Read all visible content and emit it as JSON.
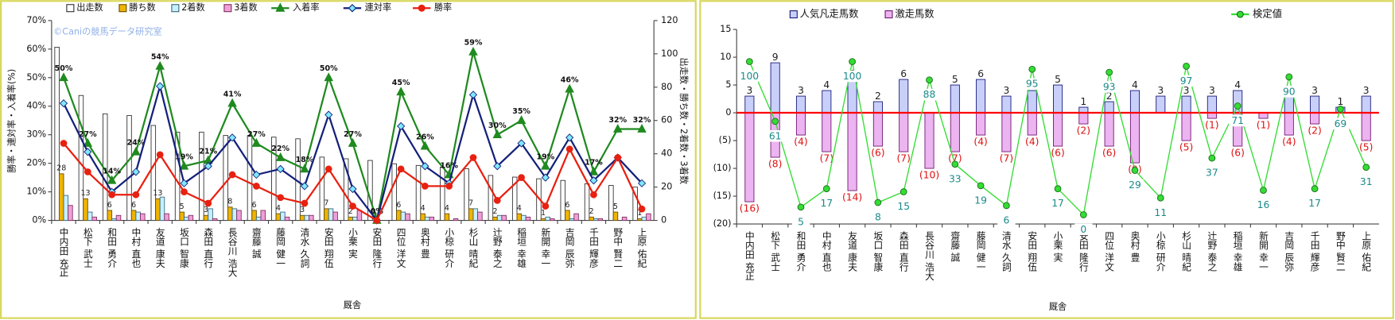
{
  "chart_data": [
    {
      "type": "combo",
      "barmode": "group",
      "ylabel": "勝率・連対率・入着率(%)",
      "y2label": "出走数・勝ち数・2着数・3着数",
      "xlabel": "厩舎",
      "watermark": "©Caniの競馬データ研究室",
      "categories": [
        "中内田 充正",
        "松下 武士",
        "和田 勇介",
        "中村 直也",
        "友道 康夫",
        "坂口 智康",
        "森田 直行",
        "長谷川 浩大",
        "齋藤 誠",
        "藤岡 健一",
        "清水 久詞",
        "安田 翔伍",
        "小栗 実",
        "安田 隆行",
        "四位 洋文",
        "奥村 豊",
        "小椋 研介",
        "杉山 晴紀",
        "辻野 泰之",
        "稲垣 幸雄",
        "新開 幸一",
        "吉岡 辰弥",
        "千田 輝彦",
        "野中 賢二",
        "上原 佑紀"
      ],
      "ylim": [
        0,
        70
      ],
      "yticks": [
        {
          "value": 0,
          "label": "0%"
        },
        {
          "value": 10,
          "label": "10%"
        },
        {
          "value": 20,
          "label": "20%"
        },
        {
          "value": 30,
          "label": "30%"
        },
        {
          "value": 40,
          "label": "40%"
        },
        {
          "value": 50,
          "label": "50%"
        },
        {
          "value": 60,
          "label": "60%"
        },
        {
          "value": 70,
          "label": "70%"
        }
      ],
      "y2lim": [
        0,
        120
      ],
      "y2ticks": [
        0,
        20,
        40,
        60,
        80,
        100,
        120
      ],
      "series": [
        {
          "name": "出走数",
          "kind": "bar",
          "axis": "y2",
          "color": "#ffffff",
          "edgecolor": "#333333",
          "values": [
            104,
            75,
            64,
            63,
            57,
            53,
            53,
            51,
            51,
            50,
            49,
            38,
            37,
            36,
            34,
            33,
            32,
            31,
            27,
            26,
            25,
            24,
            22,
            21,
            20
          ]
        },
        {
          "name": "勝ち数",
          "kind": "bar",
          "axis": "y2",
          "color": "#f0b400",
          "edgecolor": "#6a5000",
          "labels": true,
          "values": [
            28,
            13,
            6,
            6,
            13,
            5,
            3,
            8,
            6,
            4,
            3,
            7,
            2,
            0,
            6,
            4,
            4,
            7,
            2,
            4,
            1,
            6,
            2,
            5,
            1
          ]
        },
        {
          "name": "2着数",
          "kind": "bar",
          "axis": "y2",
          "color": "#c8f0ff",
          "edgecolor": "#3a6a80",
          "values": [
            15,
            5,
            1,
            5,
            14,
            2,
            7,
            7,
            2,
            5,
            3,
            7,
            2,
            0,
            5,
            2,
            0,
            7,
            3,
            3,
            2,
            1,
            1,
            0,
            2
          ]
        },
        {
          "name": "3着数",
          "kind": "bar",
          "axis": "y2",
          "color": "#f0a0d8",
          "edgecolor": "#803060",
          "values": [
            9,
            2,
            3,
            4,
            4,
            3,
            1,
            6,
            6,
            2,
            3,
            5,
            6,
            0,
            4,
            2,
            1,
            5,
            3,
            2,
            1,
            4,
            1,
            2,
            4
          ]
        },
        {
          "name": "入着率",
          "kind": "line",
          "axis": "y",
          "color": "#1f8a1f",
          "marker": "triangle",
          "values": [
            50,
            27,
            14,
            24,
            54,
            19,
            21,
            41,
            27,
            22,
            18,
            50,
            27,
            0,
            45,
            26,
            16,
            59,
            30,
            35,
            19,
            46,
            17,
            32,
            32
          ],
          "value_labels": [
            "50%",
            "27%",
            "14%",
            "24%",
            "54%",
            "19%",
            "21%",
            "41%",
            "27%",
            "22%",
            "18%",
            "50%",
            "27%",
            "0%",
            "45%",
            "26%",
            "16%",
            "59%",
            "30%",
            "35%",
            "19%",
            "46%",
            "17%",
            "32%",
            "32%"
          ]
        },
        {
          "name": "連対率",
          "kind": "line",
          "axis": "y",
          "color": "#14207a",
          "marker": "diamond",
          "values": [
            41,
            24,
            10,
            17,
            47,
            13,
            19,
            29,
            16,
            18,
            12,
            37,
            11,
            0,
            33,
            19,
            13,
            44,
            19,
            27,
            15,
            29,
            14,
            22,
            13
          ]
        },
        {
          "name": "勝率",
          "kind": "line",
          "axis": "y",
          "color": "#e82010",
          "marker": "circle",
          "values": [
            27,
            17,
            9,
            9,
            23,
            10,
            6,
            16,
            12,
            8,
            6,
            18,
            5,
            0,
            18,
            12,
            12,
            22,
            7,
            15,
            5,
            25,
            9,
            22,
            4
          ]
        }
      ]
    },
    {
      "type": "combo",
      "barmode": "overlay",
      "xlabel": "厩舎",
      "categories": [
        "中内田 充正",
        "松下 武士",
        "和田 勇介",
        "中村 直也",
        "友道 康夫",
        "坂口 智康",
        "森田 直行",
        "長谷川 浩大",
        "齋藤 誠",
        "藤岡 健一",
        "清水 久詞",
        "安田 翔伍",
        "小栗 実",
        "安田 隆行",
        "四位 洋文",
        "奥村 豊",
        "小椋 研介",
        "杉山 晴紀",
        "辻野 泰之",
        "稲垣 幸雄",
        "新開 幸一",
        "吉岡 辰弥",
        "千田 輝彦",
        "野中 賢二",
        "上原 佑紀"
      ],
      "ylim": [
        -20,
        15
      ],
      "yticks": [
        {
          "value": -20,
          "label": "(20)"
        },
        {
          "value": -15,
          "label": "(15)"
        },
        {
          "value": -10,
          "label": "(10)"
        },
        {
          "value": -5,
          "label": "(5)"
        },
        0,
        5,
        10,
        15
      ],
      "y2lim": [
        -6,
        121
      ],
      "series": [
        {
          "name": "人気凡走馬数",
          "kind": "bar",
          "axis": "y",
          "color": "#c8d0fa",
          "edgecolor": "#1a1a7a",
          "labels": true,
          "values": [
            3,
            9,
            3,
            4,
            6,
            2,
            6,
            0,
            5,
            6,
            3,
            4,
            5,
            1,
            2,
            4,
            3,
            3,
            3,
            4,
            0,
            3,
            3,
            1,
            3
          ]
        },
        {
          "name": "激走馬数",
          "kind": "bar",
          "axis": "y",
          "color": "#ecb4f0",
          "edgecolor": "#701a70",
          "labels": true,
          "label_color": "#e01010",
          "values": [
            -16,
            -8,
            -4,
            -7,
            -14,
            -6,
            -7,
            -10,
            -7,
            -4,
            -7,
            -4,
            -6,
            -2,
            -6,
            -9,
            0,
            -5,
            -1,
            -6,
            -1,
            -4,
            -2,
            0,
            -5
          ],
          "value_labels": [
            "(16)",
            "(8)",
            "(4)",
            "(7)",
            "(14)",
            "(6)",
            "(7)",
            "(10)",
            "(7)",
            "(4)",
            "(7)",
            "(4)",
            "(6)",
            "(2)",
            "(6)",
            "(9)",
            null,
            "(5)",
            "(1)",
            "(6)",
            "(1)",
            "(4)",
            "(2)",
            null,
            "(5)"
          ]
        },
        {
          "name": "検定値",
          "kind": "line",
          "axis": "y2",
          "color": "#33dd33",
          "edgecolor": "#1a6a1a",
          "marker": "circle",
          "labels": true,
          "label_color": "#1a8a8a",
          "values": [
            100,
            61,
            5,
            17,
            100,
            8,
            15,
            88,
            33,
            19,
            6,
            95,
            17,
            0,
            93,
            29,
            11,
            97,
            37,
            71,
            16,
            90,
            17,
            69,
            31
          ]
        }
      ]
    }
  ]
}
